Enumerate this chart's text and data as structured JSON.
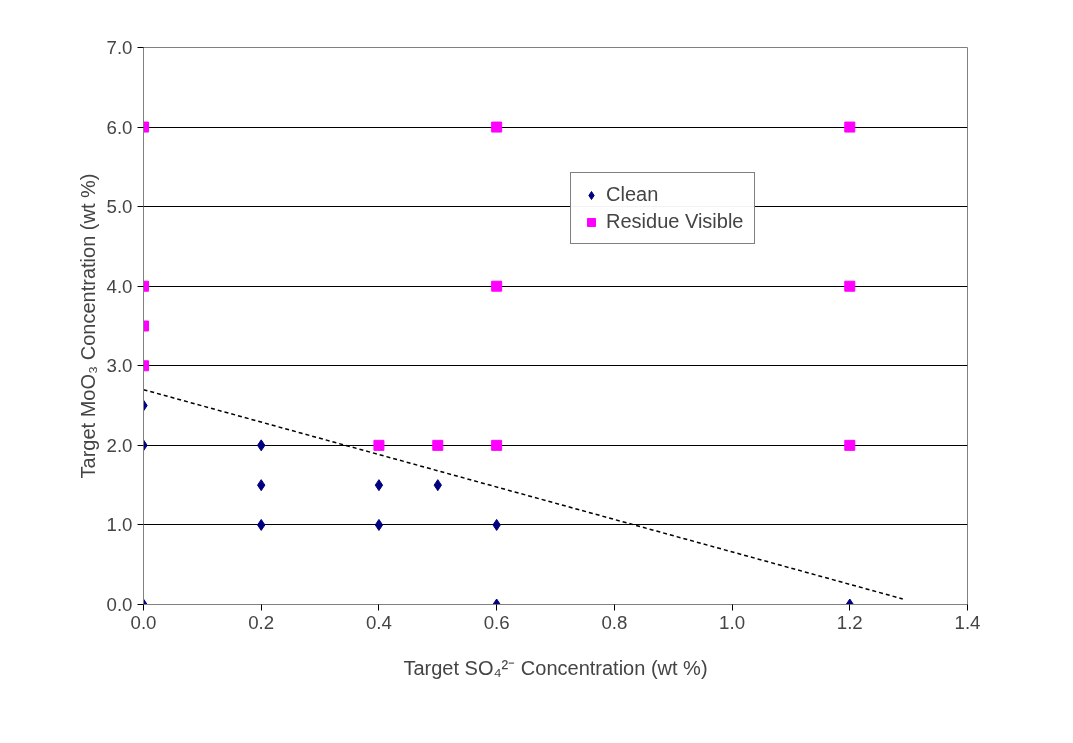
{
  "chart_data": {
    "type": "scatter",
    "xlabel": "Target SO₄²⁻ Concentration (wt %)",
    "ylabel": "Target MoO₃ Concentration (wt %)",
    "xlim": [
      0,
      1.4
    ],
    "ylim": [
      0,
      7
    ],
    "xticks": [
      {
        "value": 0,
        "label": "0.0"
      },
      {
        "value": 0.2,
        "label": "0.2"
      },
      {
        "value": 0.4,
        "label": "0.4"
      },
      {
        "value": 0.6,
        "label": "0.6"
      },
      {
        "value": 0.8,
        "label": "0.8"
      },
      {
        "value": 1.0,
        "label": "1.0"
      },
      {
        "value": 1.2,
        "label": "1.2"
      },
      {
        "value": 1.4,
        "label": "1.4"
      }
    ],
    "yticks": [
      {
        "value": 0,
        "label": "0.0"
      },
      {
        "value": 1,
        "label": "1.0"
      },
      {
        "value": 2,
        "label": "2.0"
      },
      {
        "value": 3,
        "label": "3.0"
      },
      {
        "value": 4,
        "label": "4.0"
      },
      {
        "value": 5,
        "label": "5.0"
      },
      {
        "value": 6,
        "label": "6.0"
      },
      {
        "value": 7,
        "label": "7.0"
      }
    ],
    "grid": "y",
    "legend": "top right",
    "series": [
      {
        "name": "Clean",
        "color": "#000080",
        "marker": "diamond",
        "x": [
          0,
          0,
          0,
          0.2,
          0.2,
          0.2,
          0.4,
          0.4,
          0.5,
          0.6,
          0.6,
          1.2
        ],
        "values": [
          0,
          2,
          2.5,
          1,
          1.5,
          2,
          1,
          1.5,
          1.5,
          0,
          1,
          0
        ]
      },
      {
        "name": "Residue Visible",
        "color": "#ff00ff",
        "marker": "square",
        "x": [
          0,
          0,
          0,
          0,
          0.4,
          0.5,
          0.6,
          0.6,
          0.6,
          1.2,
          1.2,
          1.2
        ],
        "values": [
          3,
          3.5,
          4,
          6,
          2,
          2,
          2,
          4,
          6,
          2,
          4,
          6
        ]
      },
      {
        "type": "line",
        "color": "#000000",
        "line_style": "dashed",
        "x": [
          0,
          1.29
        ],
        "values": [
          2.7,
          0.07
        ]
      }
    ]
  }
}
